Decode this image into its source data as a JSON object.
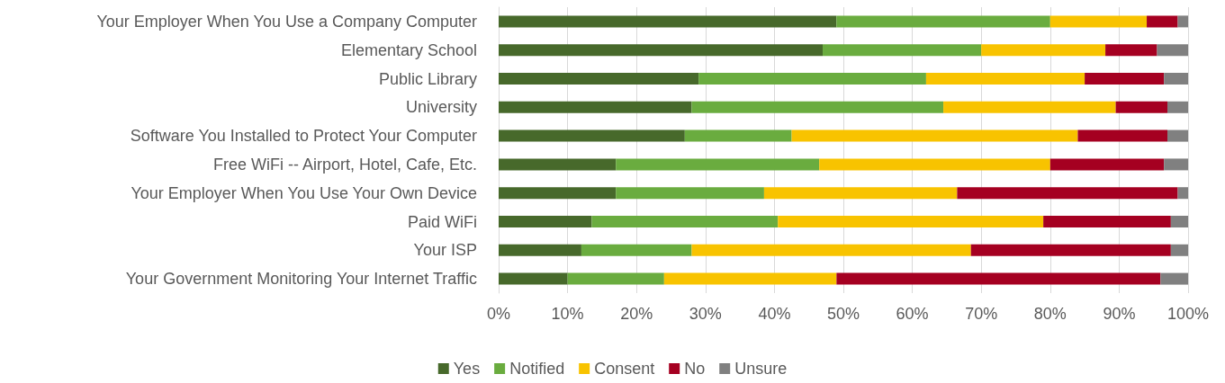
{
  "chart_data": {
    "type": "bar",
    "orientation": "horizontal",
    "stacked": true,
    "categories": [
      "Your Employer When You Use a Company Computer",
      "Elementary School",
      "Public Library",
      "University",
      "Software You Installed to Protect Your Computer",
      "Free WiFi -- Airport, Hotel, Cafe, Etc.",
      "Your Employer When You Use Your Own Device",
      "Paid WiFi",
      "Your ISP",
      "Your Government Monitoring Your Internet Traffic"
    ],
    "series": [
      {
        "name": "Yes",
        "color": "#47692b",
        "values": [
          49,
          47,
          29,
          28,
          27,
          17,
          17,
          13.5,
          12,
          10
        ]
      },
      {
        "name": "Notified",
        "color": "#6aac3f",
        "values": [
          31,
          23,
          33,
          36.5,
          15.5,
          29.5,
          21.5,
          27,
          16,
          14
        ]
      },
      {
        "name": "Consent",
        "color": "#f8c300",
        "values": [
          14,
          18,
          23,
          25,
          41.5,
          33.5,
          28,
          38.5,
          40.5,
          25
        ]
      },
      {
        "name": "No",
        "color": "#a50021",
        "values": [
          4.5,
          7.5,
          11.5,
          7.5,
          13,
          16.5,
          32,
          18.5,
          29,
          47
        ]
      },
      {
        "name": "Unsure",
        "color": "#808080",
        "values": [
          1.5,
          4.5,
          3.5,
          3,
          3,
          3.5,
          1.5,
          2.5,
          2.5,
          4
        ]
      }
    ],
    "xlim": [
      0,
      100
    ],
    "xticks": [
      {
        "value": 0,
        "label": "0%"
      },
      {
        "value": 10,
        "label": "10%"
      },
      {
        "value": 20,
        "label": "20%"
      },
      {
        "value": 30,
        "label": "30%"
      },
      {
        "value": 40,
        "label": "40%"
      },
      {
        "value": 50,
        "label": "50%"
      },
      {
        "value": 60,
        "label": "60%"
      },
      {
        "value": 70,
        "label": "70%"
      },
      {
        "value": 80,
        "label": "80%"
      },
      {
        "value": 90,
        "label": "90%"
      },
      {
        "value": 100,
        "label": "100%"
      }
    ],
    "grid": "x",
    "legend": "bottom"
  }
}
